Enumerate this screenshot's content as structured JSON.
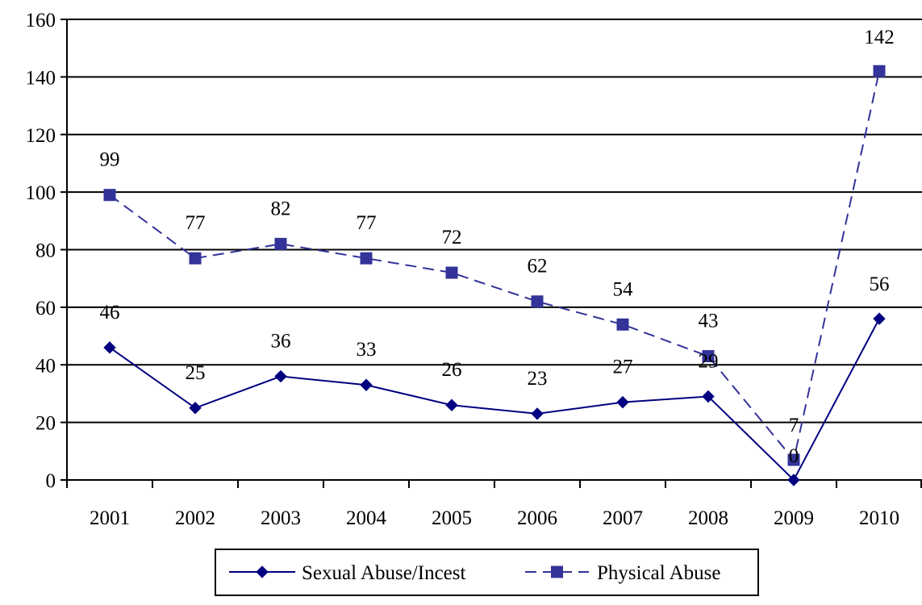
{
  "chart_data": {
    "type": "line",
    "title": "",
    "xlabel": "",
    "ylabel": "",
    "categories": [
      "2001",
      "2002",
      "2003",
      "2004",
      "2005",
      "2006",
      "2007",
      "2008",
      "2009",
      "2010"
    ],
    "ylim": [
      0,
      160
    ],
    "yticks": [
      "0",
      "20",
      "40",
      "60",
      "80",
      "100",
      "120",
      "140",
      "160"
    ],
    "grid": "horizontal",
    "legend_position": "bottom",
    "series": [
      {
        "name": "Sexual Abuse/Incest",
        "values": [
          46,
          25,
          36,
          33,
          26,
          23,
          27,
          29,
          0,
          56
        ],
        "labels": [
          "46",
          "25",
          "36",
          "33",
          "26",
          "23",
          "27",
          "29",
          "0",
          "56"
        ],
        "color": "#000080",
        "line_style": "solid",
        "marker": "diamond"
      },
      {
        "name": "Physical Abuse",
        "values": [
          99,
          77,
          82,
          77,
          72,
          62,
          54,
          43,
          7,
          142
        ],
        "labels": [
          "99",
          "77",
          "82",
          "77",
          "72",
          "62",
          "54",
          "43",
          "7",
          "142"
        ],
        "color": "#333399",
        "line_style": "dashed",
        "marker": "square"
      }
    ]
  }
}
